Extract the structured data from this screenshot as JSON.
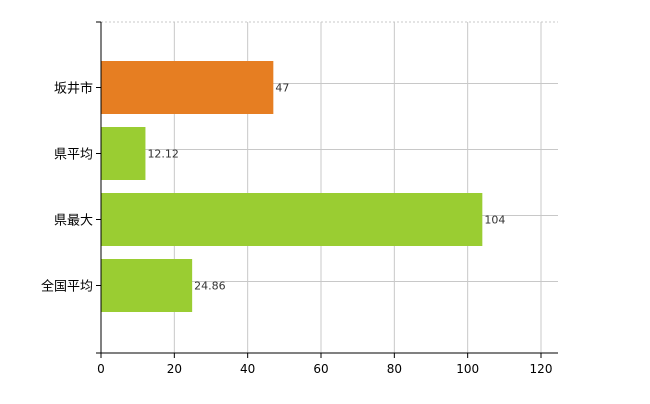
{
  "chart_data": {
    "type": "bar",
    "orientation": "horizontal",
    "categories": [
      "坂井市",
      "県平均",
      "県最大",
      "全国平均"
    ],
    "values": [
      47,
      12.12,
      104,
      24.86
    ],
    "value_labels": [
      "47",
      "12.12",
      "104",
      "24.86"
    ],
    "bar_colors": [
      "#e67e22",
      "#9acd32",
      "#9acd32",
      "#9acd32"
    ],
    "xlim": [
      0,
      120
    ],
    "x_ticks": [
      0,
      20,
      40,
      60,
      80,
      100,
      120
    ],
    "grid": true,
    "title": "",
    "xlabel": "",
    "ylabel": ""
  }
}
